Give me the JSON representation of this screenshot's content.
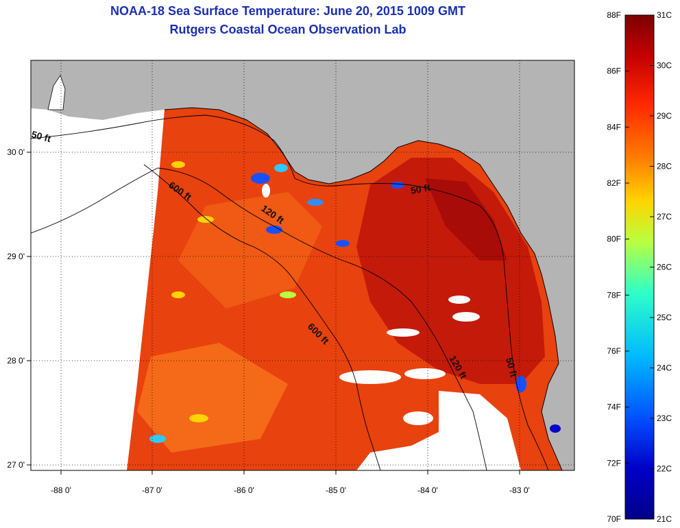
{
  "title_line1": "NOAA-18 Sea Surface Temperature:  June 20, 2015 1009 GMT",
  "title_line2": "Rutgers Coastal Ocean Observation Lab",
  "axes": {
    "lon_ticks": [
      "-88 0'",
      "-87 0'",
      "-86 0'",
      "-85 0'",
      "-84 0'",
      "-83 0'"
    ],
    "lat_ticks": [
      "30 0'",
      "29 0'",
      "28 0'",
      "27 0'"
    ]
  },
  "depth_labels": [
    "50 ft",
    "600 ft",
    "120 ft",
    "50 ft",
    "600 ft",
    "120 ft",
    "50 ft"
  ],
  "colorbar": {
    "fahrenheit": [
      "88F",
      "86F",
      "84F",
      "82F",
      "80F",
      "78F",
      "76F",
      "74F",
      "72F",
      "70F"
    ],
    "celsius": [
      "31C",
      "30C",
      "29C",
      "28C",
      "27C",
      "26C",
      "25C",
      "24C",
      "23C",
      "22C",
      "21C"
    ],
    "colors": [
      "#7a0000",
      "#c40000",
      "#ff2a00",
      "#ff7a00",
      "#ffd400",
      "#b8ff40",
      "#30ffc8",
      "#00b8ff",
      "#0050ff",
      "#0000c8",
      "#00008a"
    ]
  },
  "colors": {
    "land": "#b4b4b4",
    "water_hot": "#c81a0a",
    "water_warm": "#ee4a12",
    "title": "#1a2fb0"
  }
}
